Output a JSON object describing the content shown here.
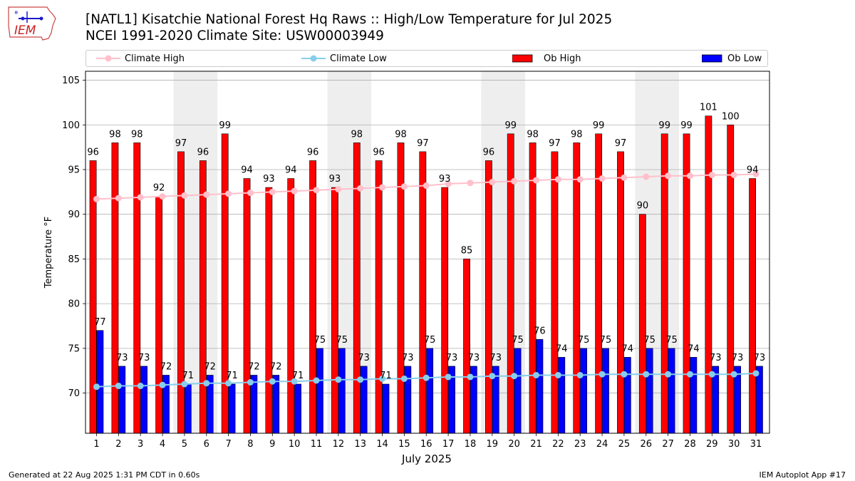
{
  "header": {
    "title_line1": "[NATL1] Kisatchie National Forest Hq Raws :: High/Low Temperature for Jul 2025",
    "title_line2": "NCEI 1991-2020 Climate Site: USW00003949",
    "logo_text": "IEM"
  },
  "legend": {
    "items": [
      {
        "label": "Climate High",
        "kind": "line",
        "color": "#FFC0CB"
      },
      {
        "label": "Climate Low",
        "kind": "line",
        "color": "#87CEEB"
      },
      {
        "label": "Ob High",
        "kind": "bar",
        "color": "#FF0000"
      },
      {
        "label": "Ob Low",
        "kind": "bar",
        "color": "#0000FF"
      }
    ]
  },
  "footer": {
    "left": "Generated at 22 Aug 2025 1:31 PM CDT in 0.60s",
    "right": "IEM Autoplot App #17"
  },
  "chart_data": {
    "type": "bar",
    "xlabel": "July 2025",
    "ylabel": "Temperature °F",
    "ylim": [
      65.5,
      106
    ],
    "yticks": [
      70,
      75,
      80,
      85,
      90,
      95,
      100,
      105
    ],
    "grid": true,
    "weekend_shading_days": [
      5,
      6,
      12,
      13,
      19,
      20,
      26,
      27
    ],
    "categories": [
      1,
      2,
      3,
      4,
      5,
      6,
      7,
      8,
      9,
      10,
      11,
      12,
      13,
      14,
      15,
      16,
      17,
      18,
      19,
      20,
      21,
      22,
      23,
      24,
      25,
      26,
      27,
      28,
      29,
      30,
      31
    ],
    "series": [
      {
        "name": "Ob High",
        "kind": "bar",
        "color": "#FF0000",
        "values": [
          96,
          98,
          98,
          92,
          97,
          96,
          99,
          94,
          93,
          94,
          96,
          93,
          98,
          96,
          98,
          97,
          93,
          85,
          96,
          99,
          98,
          97,
          98,
          99,
          97,
          90,
          99,
          99,
          101,
          100,
          94
        ]
      },
      {
        "name": "Ob Low",
        "kind": "bar",
        "color": "#0000FF",
        "values": [
          77,
          73,
          73,
          72,
          71,
          72,
          71,
          72,
          72,
          71,
          75,
          75,
          73,
          71,
          73,
          75,
          73,
          73,
          73,
          75,
          76,
          74,
          75,
          75,
          74,
          75,
          75,
          74,
          73,
          73,
          73
        ]
      },
      {
        "name": "Climate High",
        "kind": "line",
        "color": "#FFC0CB",
        "values": [
          91.7,
          91.8,
          91.9,
          92.0,
          92.1,
          92.2,
          92.3,
          92.4,
          92.5,
          92.6,
          92.7,
          92.8,
          92.9,
          93.0,
          93.1,
          93.2,
          93.4,
          93.5,
          93.6,
          93.7,
          93.8,
          93.9,
          93.9,
          94.0,
          94.1,
          94.2,
          94.3,
          94.3,
          94.4,
          94.4,
          94.5
        ]
      },
      {
        "name": "Climate Low",
        "kind": "line",
        "color": "#87CEEB",
        "values": [
          70.7,
          70.8,
          70.8,
          70.9,
          71.0,
          71.1,
          71.1,
          71.2,
          71.3,
          71.3,
          71.4,
          71.5,
          71.5,
          71.6,
          71.6,
          71.7,
          71.8,
          71.8,
          71.9,
          71.9,
          72.0,
          72.0,
          72.0,
          72.1,
          72.1,
          72.1,
          72.1,
          72.1,
          72.1,
          72.1,
          72.2
        ]
      }
    ]
  }
}
